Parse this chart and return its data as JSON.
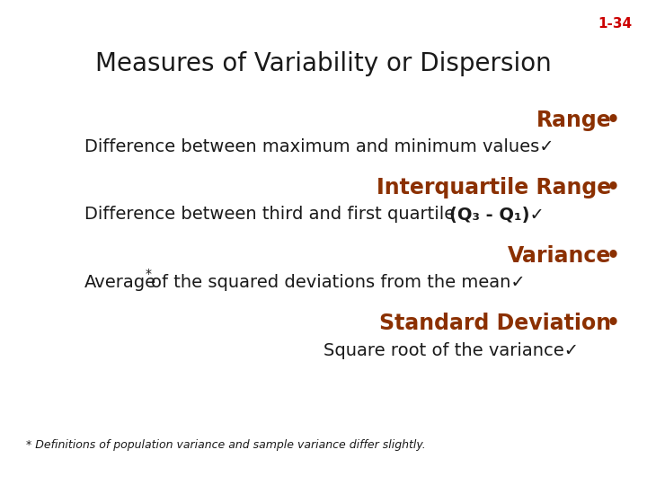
{
  "slide_number": "1-34",
  "slide_number_color": "#CC0000",
  "title": "Measures of Variability or Dispersion",
  "title_color": "#1a1a1a",
  "title_fontsize": 20,
  "bg_color": "#FFFFFF",
  "brown_color": "#8B3000",
  "dark_color": "#1a1a1a",
  "heading_fontsize": 17,
  "sub_fontsize": 14,
  "footnote_fontsize": 9,
  "items": [
    {
      "heading": "Range",
      "sub": "Difference between maximum and minimum values✓",
      "type": "simple"
    },
    {
      "heading": "Interquartile Range",
      "sub1": "Difference between third and first quartile  ",
      "sub2": "(Q₃ - Q₁)✓",
      "type": "iq"
    },
    {
      "heading": "Variance",
      "sub_pre": "Average",
      "sub_star": "*",
      "sub_post": "of the squared deviations from the mean✓",
      "type": "variance"
    },
    {
      "heading": "Standard Deviation",
      "sub": "Square root of the variance✓",
      "type": "stddev"
    }
  ],
  "footnote": "* Definitions of population variance and sample variance differ slightly."
}
